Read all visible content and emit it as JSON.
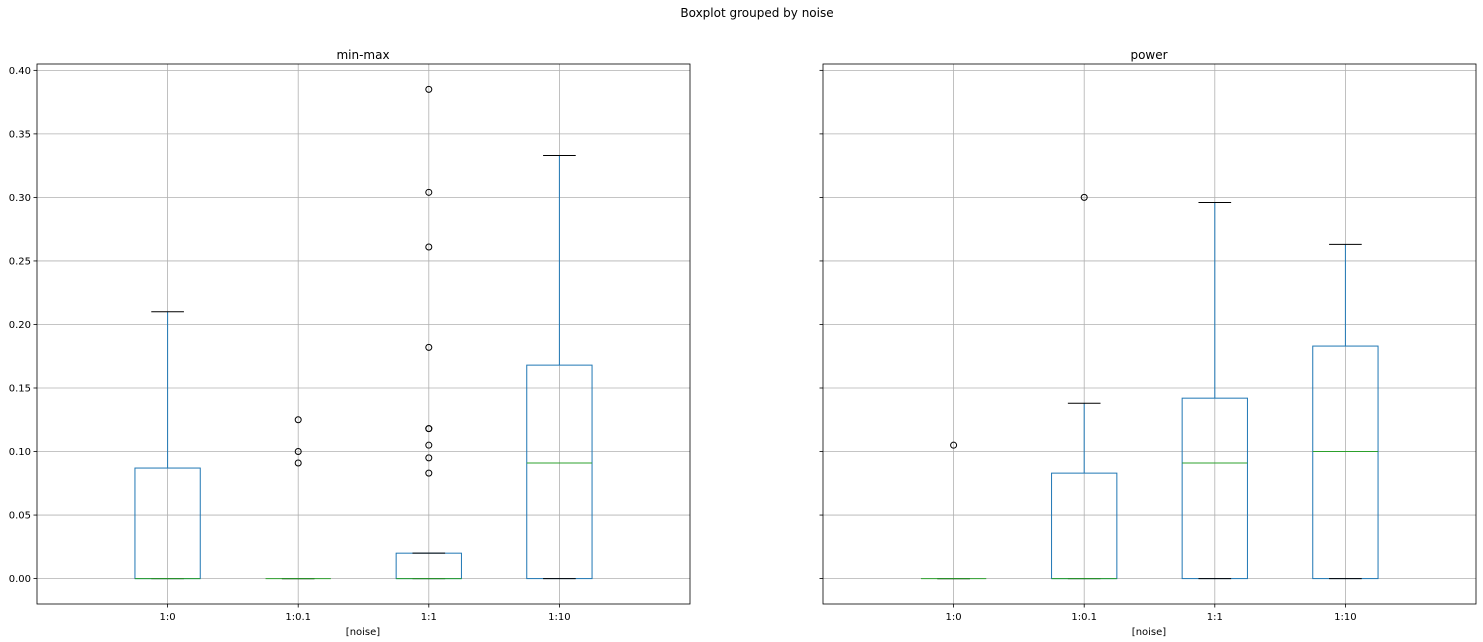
{
  "suptitle": "Boxplot grouped by noise",
  "chart_data": [
    {
      "type": "box",
      "title": "min-max",
      "xlabel": "[noise]",
      "ylabel": "",
      "ylim": [
        -0.02,
        0.405
      ],
      "yticks": [
        "0.00",
        "0.05",
        "0.10",
        "0.15",
        "0.20",
        "0.25",
        "0.30",
        "0.35",
        "0.40"
      ],
      "grid": true,
      "categories": [
        "1:0",
        "1:0.1",
        "1:1",
        "1:10"
      ],
      "boxes": [
        {
          "category": "1:0",
          "whisker_low": 0.0,
          "q1": 0.0,
          "median": 0.0,
          "q3": 0.087,
          "whisker_high": 0.21,
          "outliers": []
        },
        {
          "category": "1:0.1",
          "whisker_low": 0.0,
          "q1": 0.0,
          "median": 0.0,
          "q3": 0.0,
          "whisker_high": 0.0,
          "outliers": [
            0.125,
            0.1,
            0.091
          ]
        },
        {
          "category": "1:1",
          "whisker_low": 0.0,
          "q1": 0.0,
          "median": 0.0,
          "q3": 0.02,
          "whisker_high": 0.02,
          "outliers": [
            0.385,
            0.304,
            0.261,
            0.182,
            0.118,
            0.118,
            0.105,
            0.095,
            0.083
          ]
        },
        {
          "category": "1:10",
          "whisker_low": 0.0,
          "q1": 0.0,
          "median": 0.091,
          "q3": 0.168,
          "whisker_high": 0.333,
          "outliers": []
        }
      ]
    },
    {
      "type": "box",
      "title": "power",
      "xlabel": "[noise]",
      "ylabel": "",
      "ylim": [
        -0.02,
        0.405
      ],
      "grid": true,
      "categories": [
        "1:0",
        "1:0.1",
        "1:1",
        "1:10"
      ],
      "boxes": [
        {
          "category": "1:0",
          "whisker_low": 0.0,
          "q1": 0.0,
          "median": 0.0,
          "q3": 0.0,
          "whisker_high": 0.0,
          "outliers": [
            0.105
          ]
        },
        {
          "category": "1:0.1",
          "whisker_low": 0.0,
          "q1": 0.0,
          "median": 0.0,
          "q3": 0.083,
          "whisker_high": 0.138,
          "outliers": [
            0.3
          ]
        },
        {
          "category": "1:1",
          "whisker_low": 0.0,
          "q1": 0.0,
          "median": 0.091,
          "q3": 0.142,
          "whisker_high": 0.296,
          "outliers": []
        },
        {
          "category": "1:10",
          "whisker_low": 0.0,
          "q1": 0.0,
          "median": 0.1,
          "q3": 0.183,
          "whisker_high": 0.263,
          "outliers": []
        }
      ]
    }
  ],
  "colors": {
    "box": "#1f77b4",
    "median": "#2ca02c",
    "whisker_cap": "#000000",
    "grid": "#b0b0b0",
    "axes": "#000000",
    "outlier_edge": "#000000"
  }
}
